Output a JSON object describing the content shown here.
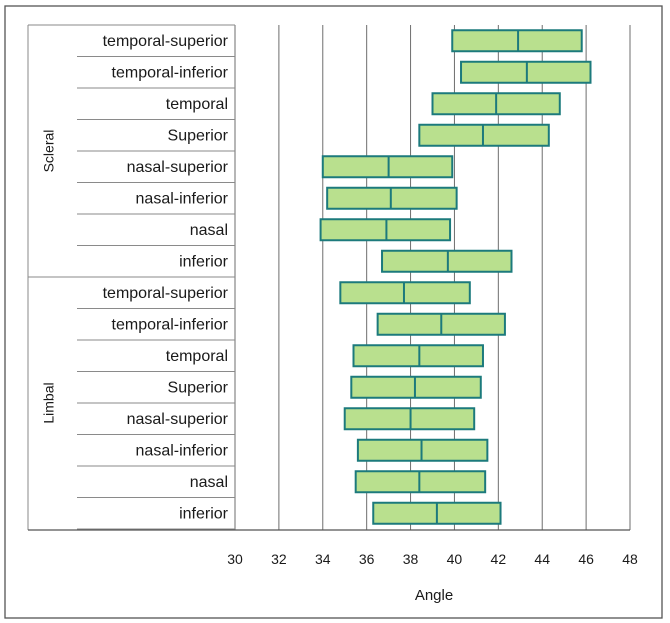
{
  "chart_data": {
    "type": "box",
    "xlabel": "Angle",
    "xlim": [
      30,
      48
    ],
    "x_ticks": [
      30,
      32,
      34,
      36,
      38,
      40,
      42,
      44,
      46,
      48
    ],
    "grid": true,
    "groups": [
      {
        "name": "Scleral",
        "rows": [
          {
            "label": "temporal-superior",
            "q1": 39.9,
            "median": 42.9,
            "q3": 45.8
          },
          {
            "label": "temporal-inferior",
            "q1": 40.3,
            "median": 43.3,
            "q3": 46.2
          },
          {
            "label": "temporal",
            "q1": 39.0,
            "median": 41.9,
            "q3": 44.8
          },
          {
            "label": "Superior",
            "q1": 38.4,
            "median": 41.3,
            "q3": 44.3
          },
          {
            "label": "nasal-superior",
            "q1": 34.0,
            "median": 37.0,
            "q3": 39.9
          },
          {
            "label": "nasal-inferior",
            "q1": 34.2,
            "median": 37.1,
            "q3": 40.1
          },
          {
            "label": "nasal",
            "q1": 33.9,
            "median": 36.9,
            "q3": 39.8
          },
          {
            "label": "inferior",
            "q1": 36.7,
            "median": 39.7,
            "q3": 42.6
          }
        ]
      },
      {
        "name": "Limbal",
        "rows": [
          {
            "label": "temporal-superior",
            "q1": 34.8,
            "median": 37.7,
            "q3": 40.7
          },
          {
            "label": "temporal-inferior",
            "q1": 36.5,
            "median": 39.4,
            "q3": 42.3
          },
          {
            "label": "temporal",
            "q1": 35.4,
            "median": 38.4,
            "q3": 41.3
          },
          {
            "label": "Superior",
            "q1": 35.3,
            "median": 38.2,
            "q3": 41.2
          },
          {
            "label": "nasal-superior",
            "q1": 35.0,
            "median": 38.0,
            "q3": 40.9
          },
          {
            "label": "nasal-inferior",
            "q1": 35.6,
            "median": 38.5,
            "q3": 41.5
          },
          {
            "label": "nasal",
            "q1": 35.5,
            "median": 38.4,
            "q3": 41.4
          },
          {
            "label": "inferior",
            "q1": 36.3,
            "median": 39.2,
            "q3": 42.1
          }
        ]
      }
    ]
  }
}
